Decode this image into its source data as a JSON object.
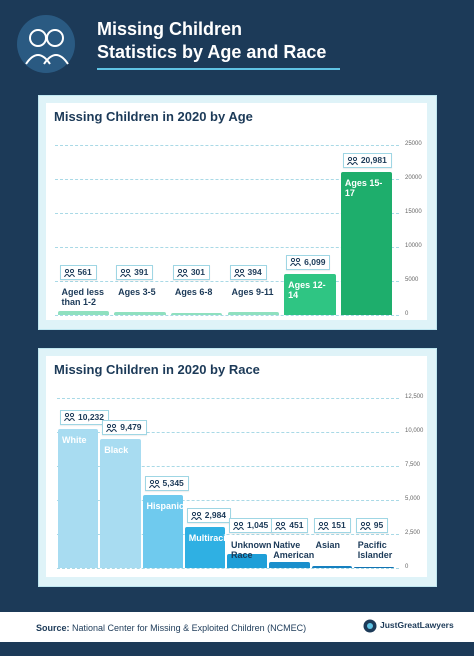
{
  "header": {
    "title": [
      "Missing Children",
      "Statistics by Age and Race"
    ]
  },
  "chart_data": [
    {
      "type": "bar",
      "title": "Missing Children in 2020 by Age",
      "categories": [
        "Aged less than 1-2",
        "Ages 3-5",
        "Ages 6-8",
        "Ages 9-11",
        "Ages 12-14",
        "Ages 15-17"
      ],
      "values": [
        561,
        391,
        301,
        394,
        6099,
        20981
      ],
      "value_labels": [
        "561",
        "391",
        "301",
        "394",
        "6,099",
        "20,981"
      ],
      "colors": [
        "#8fe0bf",
        "#8fe0bf",
        "#8fe0bf",
        "#8fe0bf",
        "#2fc583",
        "#1eae6c"
      ],
      "ylim": [
        0,
        25000
      ],
      "yticks": [
        0,
        5000,
        10000,
        15000,
        20000,
        25000
      ],
      "grid": true
    },
    {
      "type": "bar",
      "title": "Missing Children in 2020 by Race",
      "categories": [
        "White",
        "Black",
        "Hispanic",
        "Multiracial",
        "Unknown Race",
        "Native American",
        "Asian",
        "Pacific Islander"
      ],
      "values": [
        10232,
        9479,
        5345,
        2984,
        1045,
        451,
        151,
        95
      ],
      "value_labels": [
        "10,232",
        "9,479",
        "5,345",
        "2,984",
        "1,045",
        "451",
        "151",
        "95"
      ],
      "colors": [
        "#a8dcf1",
        "#a8dcf1",
        "#6fcaee",
        "#2fb0e3",
        "#1e9fd8",
        "#1a8fcc",
        "#1680c0",
        "#1373b3"
      ],
      "ylim": [
        0,
        12500
      ],
      "yticks": [
        0,
        {
          "value": 2500,
          "label": "2,500"
        },
        {
          "value": 5000,
          "label": "5,000"
        },
        {
          "value": 7500,
          "label": "7,500"
        },
        {
          "value": 10000,
          "label": "10,000"
        },
        {
          "value": 12500,
          "label": "12,500"
        }
      ],
      "grid": true
    }
  ],
  "source": {
    "label": "Source:",
    "text": "National Center for Missing & Exploited Children (NCMEC)"
  },
  "logo": {
    "text": "JustGreatLawyers"
  }
}
